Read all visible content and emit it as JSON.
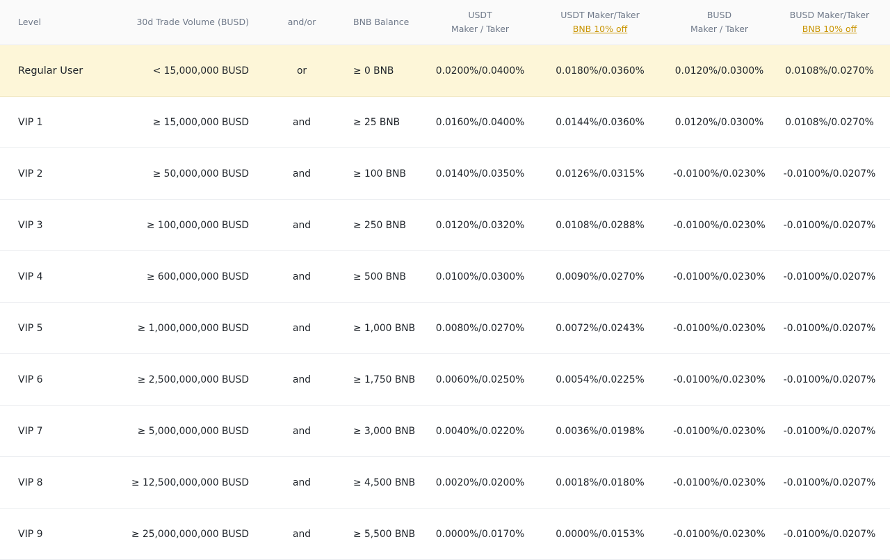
{
  "headers": {
    "level": "Level",
    "volume": "30d Trade Volume (BUSD)",
    "andor": "and/or",
    "bnb": "BNB Balance",
    "usdt_line1": "USDT",
    "usdt_line2": "Maker / Taker",
    "usdt_bnb_line1": "USDT Maker/Taker",
    "usdt_bnb_link": "BNB 10% off",
    "busd_line1": "BUSD",
    "busd_line2": "Maker / Taker",
    "busd_bnb_line1": "BUSD Maker/Taker",
    "busd_bnb_link": "BNB 10% off"
  },
  "rows": [
    {
      "level": "Regular User",
      "volume": "< 15,000,000 BUSD",
      "andor": "or",
      "bnb": "≥ 0 BNB",
      "usdt": "0.0200%/0.0400%",
      "usdt_bnb": "0.0180%/0.0360%",
      "busd": "0.0120%/0.0300%",
      "busd_bnb": "0.0108%/0.0270%"
    },
    {
      "level": "VIP 1",
      "volume": "≥ 15,000,000 BUSD",
      "andor": "and",
      "bnb": "≥ 25 BNB",
      "usdt": "0.0160%/0.0400%",
      "usdt_bnb": "0.0144%/0.0360%",
      "busd": "0.0120%/0.0300%",
      "busd_bnb": "0.0108%/0.0270%"
    },
    {
      "level": "VIP 2",
      "volume": "≥ 50,000,000 BUSD",
      "andor": "and",
      "bnb": "≥ 100 BNB",
      "usdt": "0.0140%/0.0350%",
      "usdt_bnb": "0.0126%/0.0315%",
      "busd": "-0.0100%/0.0230%",
      "busd_bnb": "-0.0100%/0.0207%"
    },
    {
      "level": "VIP 3",
      "volume": "≥ 100,000,000 BUSD",
      "andor": "and",
      "bnb": "≥ 250 BNB",
      "usdt": "0.0120%/0.0320%",
      "usdt_bnb": "0.0108%/0.0288%",
      "busd": "-0.0100%/0.0230%",
      "busd_bnb": "-0.0100%/0.0207%"
    },
    {
      "level": "VIP 4",
      "volume": "≥ 600,000,000 BUSD",
      "andor": "and",
      "bnb": "≥ 500 BNB",
      "usdt": "0.0100%/0.0300%",
      "usdt_bnb": "0.0090%/0.0270%",
      "busd": "-0.0100%/0.0230%",
      "busd_bnb": "-0.0100%/0.0207%"
    },
    {
      "level": "VIP 5",
      "volume": "≥ 1,000,000,000 BUSD",
      "andor": "and",
      "bnb": "≥ 1,000 BNB",
      "usdt": "0.0080%/0.0270%",
      "usdt_bnb": "0.0072%/0.0243%",
      "busd": "-0.0100%/0.0230%",
      "busd_bnb": "-0.0100%/0.0207%"
    },
    {
      "level": "VIP 6",
      "volume": "≥ 2,500,000,000 BUSD",
      "andor": "and",
      "bnb": "≥ 1,750 BNB",
      "usdt": "0.0060%/0.0250%",
      "usdt_bnb": "0.0054%/0.0225%",
      "busd": "-0.0100%/0.0230%",
      "busd_bnb": "-0.0100%/0.0207%"
    },
    {
      "level": "VIP 7",
      "volume": "≥ 5,000,000,000 BUSD",
      "andor": "and",
      "bnb": "≥ 3,000 BNB",
      "usdt": "0.0040%/0.0220%",
      "usdt_bnb": "0.0036%/0.0198%",
      "busd": "-0.0100%/0.0230%",
      "busd_bnb": "-0.0100%/0.0207%"
    },
    {
      "level": "VIP 8",
      "volume": "≥ 12,500,000,000 BUSD",
      "andor": "and",
      "bnb": "≥ 4,500 BNB",
      "usdt": "0.0020%/0.0200%",
      "usdt_bnb": "0.0018%/0.0180%",
      "busd": "-0.0100%/0.0230%",
      "busd_bnb": "-0.0100%/0.0207%"
    },
    {
      "level": "VIP 9",
      "volume": "≥ 25,000,000,000 BUSD",
      "andor": "and",
      "bnb": "≥ 5,500 BNB",
      "usdt": "0.0000%/0.0170%",
      "usdt_bnb": "0.0000%/0.0153%",
      "busd": "-0.0100%/0.0230%",
      "busd_bnb": "-0.0100%/0.0207%"
    }
  ],
  "colors": {
    "header_bg": "#fafafa",
    "header_text": "#707a8a",
    "highlight_bg": "#fdf6d8",
    "link": "#c99400",
    "text": "#1e2329",
    "divider": "#eaecef"
  }
}
